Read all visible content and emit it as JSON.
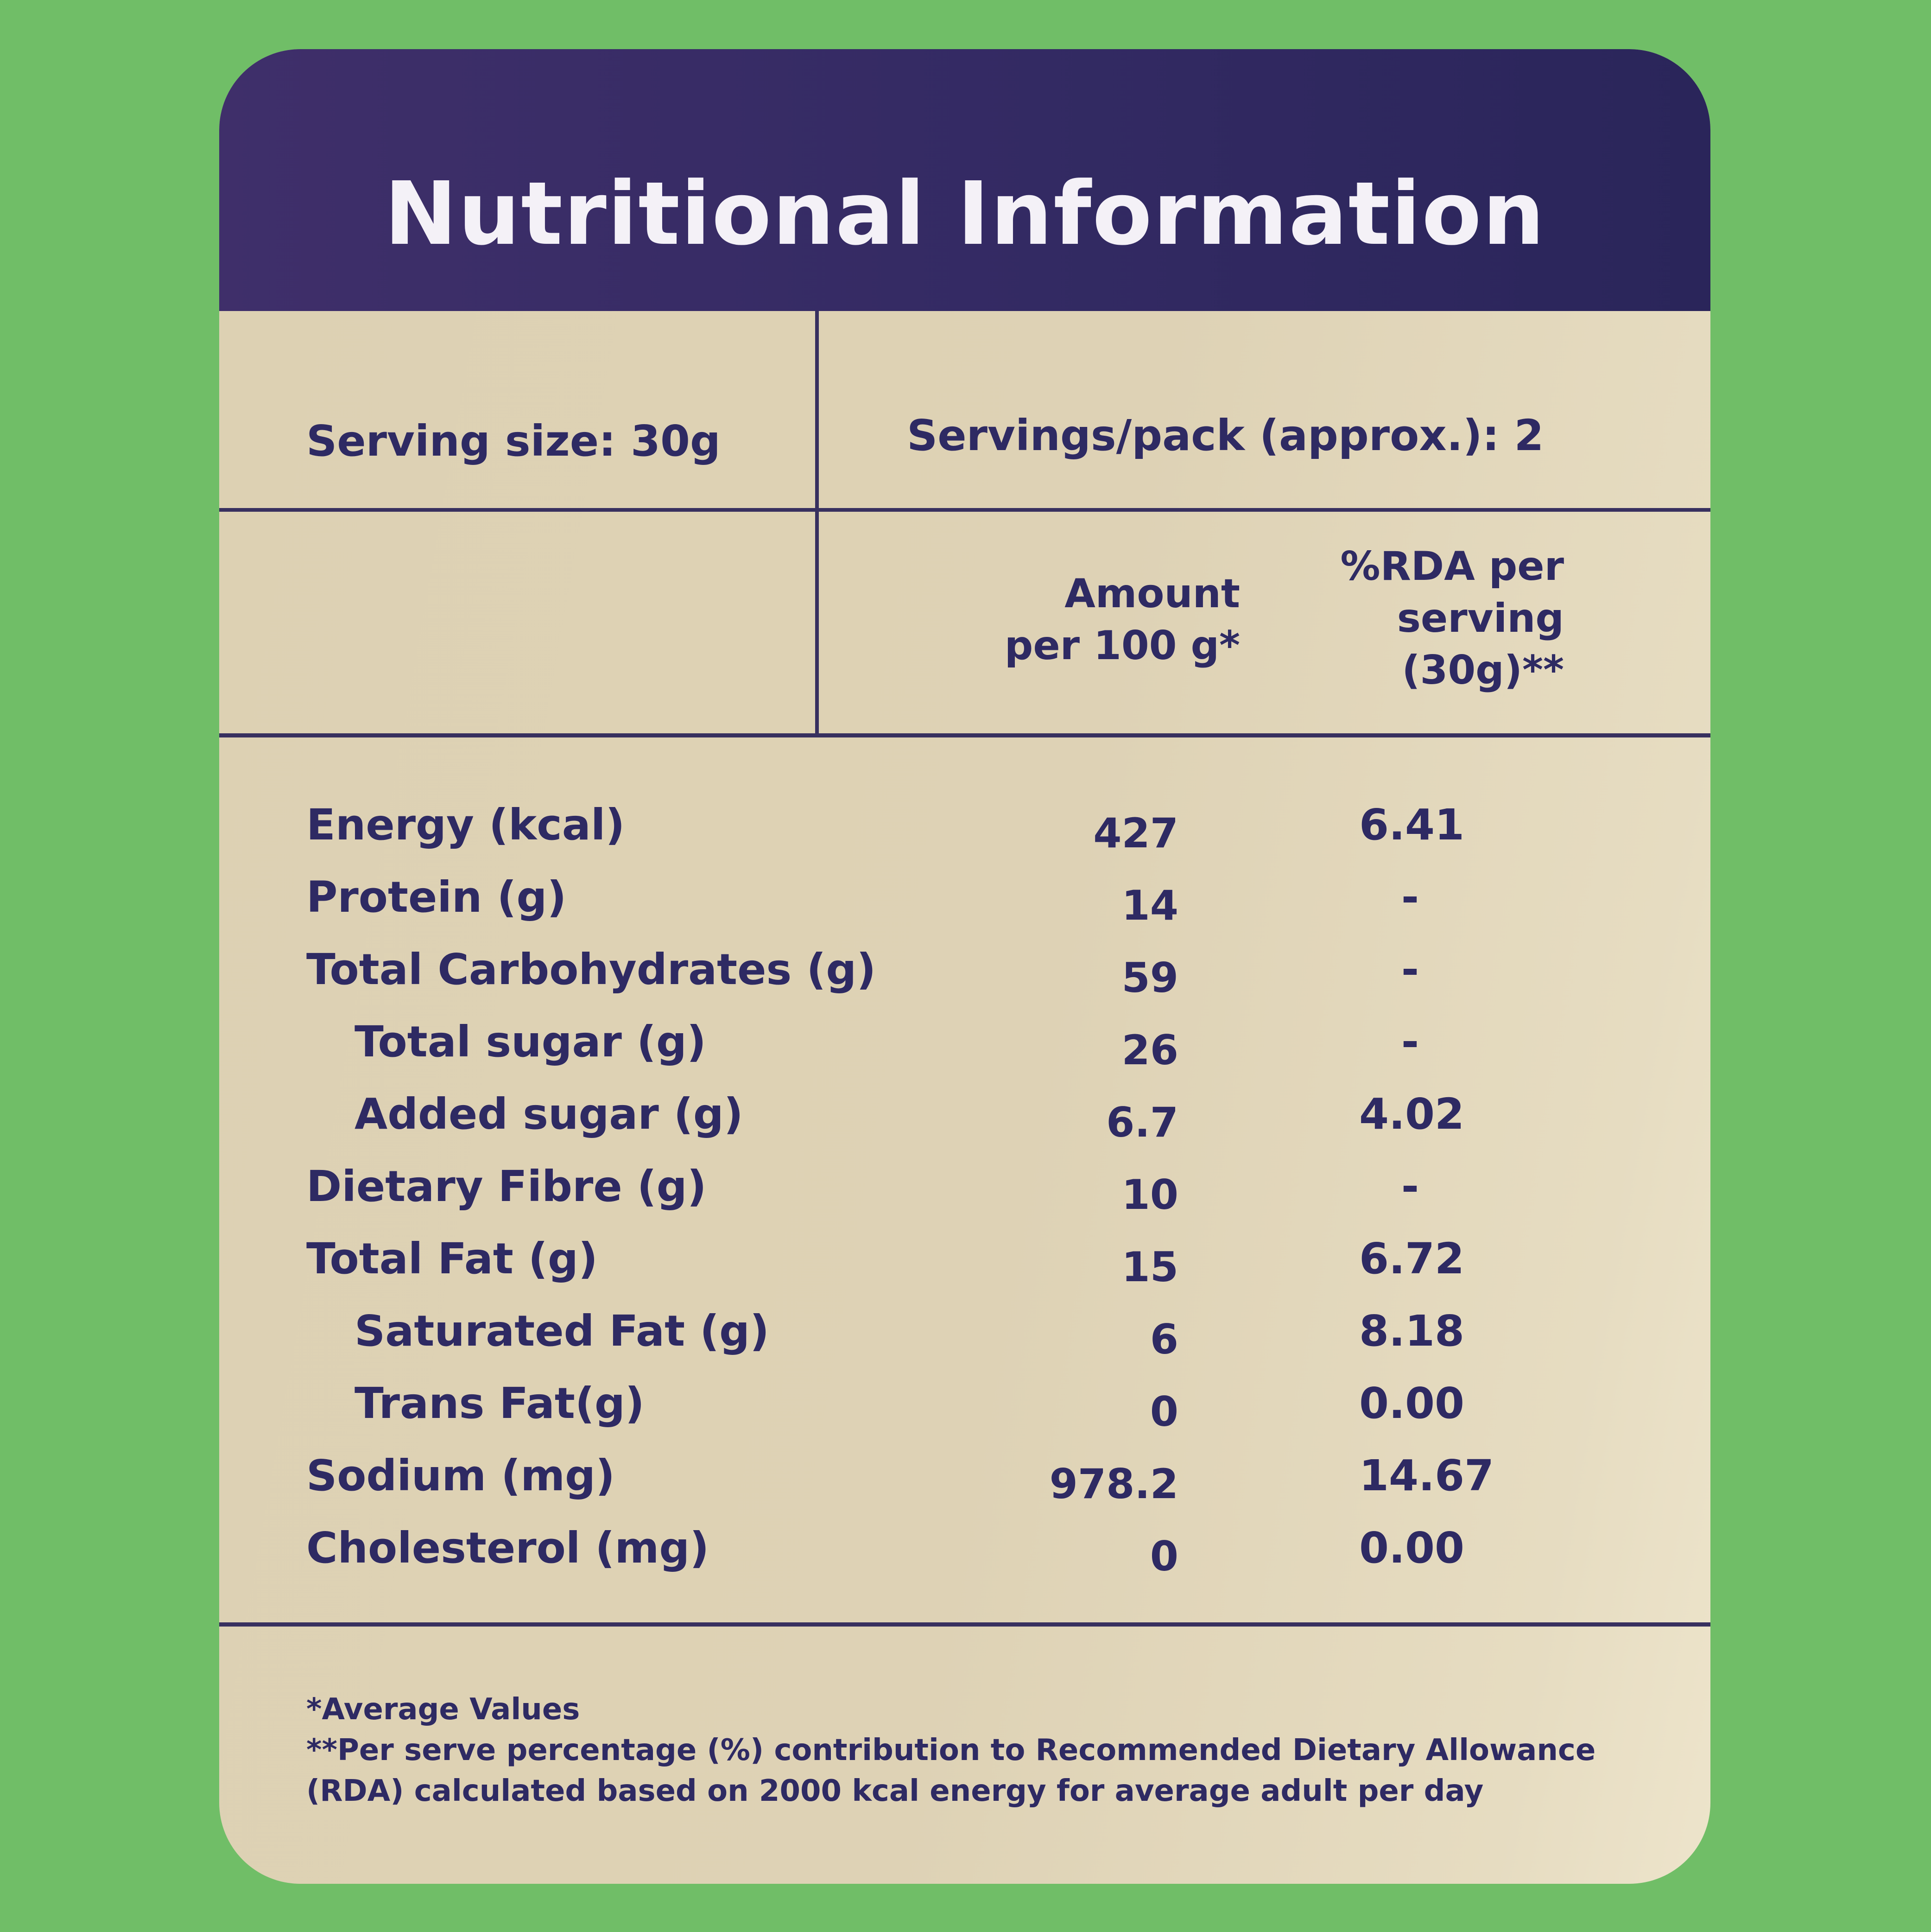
{
  "title": "Nutritional Information",
  "serving": {
    "size": "Serving size: 30g",
    "per_pack": "Servings/pack (approx.): 2"
  },
  "columns": {
    "amount_line1": "Amount",
    "amount_line2": "per 100 g*",
    "rda_line1": "%RDA per",
    "rda_line2": "serving",
    "rda_line3": "(30g)**"
  },
  "rows": [
    {
      "label": "Energy (kcal)",
      "amount": "427",
      "rda": "6.41"
    },
    {
      "label": "Protein (g)",
      "amount": "14",
      "rda": "-"
    },
    {
      "label": "Total Carbohydrates (g)",
      "amount": "59",
      "rda": "-"
    },
    {
      "label": "Total sugar (g)",
      "amount": "26",
      "rda": "-"
    },
    {
      "label": "Added sugar (g)",
      "amount": "6.7",
      "rda": "4.02"
    },
    {
      "label": "Dietary Fibre (g)",
      "amount": "10",
      "rda": "-"
    },
    {
      "label": "Total Fat (g)",
      "amount": "15",
      "rda": "6.72"
    },
    {
      "label": "Saturated Fat (g)",
      "amount": "6",
      "rda": "8.18"
    },
    {
      "label": "Trans Fat(g)",
      "amount": "0",
      "rda": "0.00"
    },
    {
      "label": "Sodium (mg)",
      "amount": "978.2",
      "rda": "14.67"
    },
    {
      "label": "Cholesterol (mg)",
      "amount": "0",
      "rda": "0.00"
    }
  ],
  "footnotes": {
    "line1": "*Average Values",
    "line2": "**Per serve percentage (%) contribution to Recommended Dietary Allowance",
    "line3": "(RDA) calculated based on 2000 kcal energy for average adult per day"
  },
  "colors": {
    "background": "#70be67",
    "header": "#332a63",
    "panel": "#ded2b5",
    "text": "#2e2a63"
  }
}
